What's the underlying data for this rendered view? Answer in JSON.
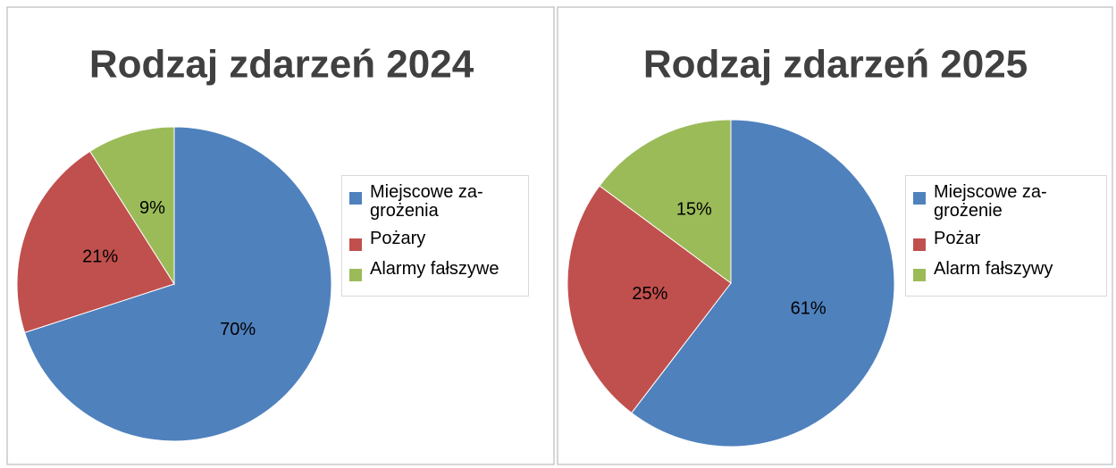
{
  "chart_data": [
    {
      "type": "pie",
      "title": "Rodzaj zdarzeń 2024",
      "categories": [
        "Miejscowe za-grożenia",
        "Pożary",
        "Alarmy fałszywe"
      ],
      "values": [
        70,
        21,
        9
      ],
      "value_labels": [
        "70%",
        "21%",
        "9%"
      ],
      "colors": [
        "#4f81bd",
        "#c0504d",
        "#9bbb59"
      ],
      "legend": "right"
    },
    {
      "type": "pie",
      "title": "Rodzaj zdarzeń 2025",
      "categories": [
        "Miejscowe za-grożenie",
        "Pożar",
        "Alarm fałszywy"
      ],
      "values": [
        61,
        25,
        15
      ],
      "value_labels": [
        "61%",
        "25%",
        "15%"
      ],
      "colors": [
        "#4f81bd",
        "#c0504d",
        "#9bbb59"
      ],
      "legend": "right"
    }
  ]
}
